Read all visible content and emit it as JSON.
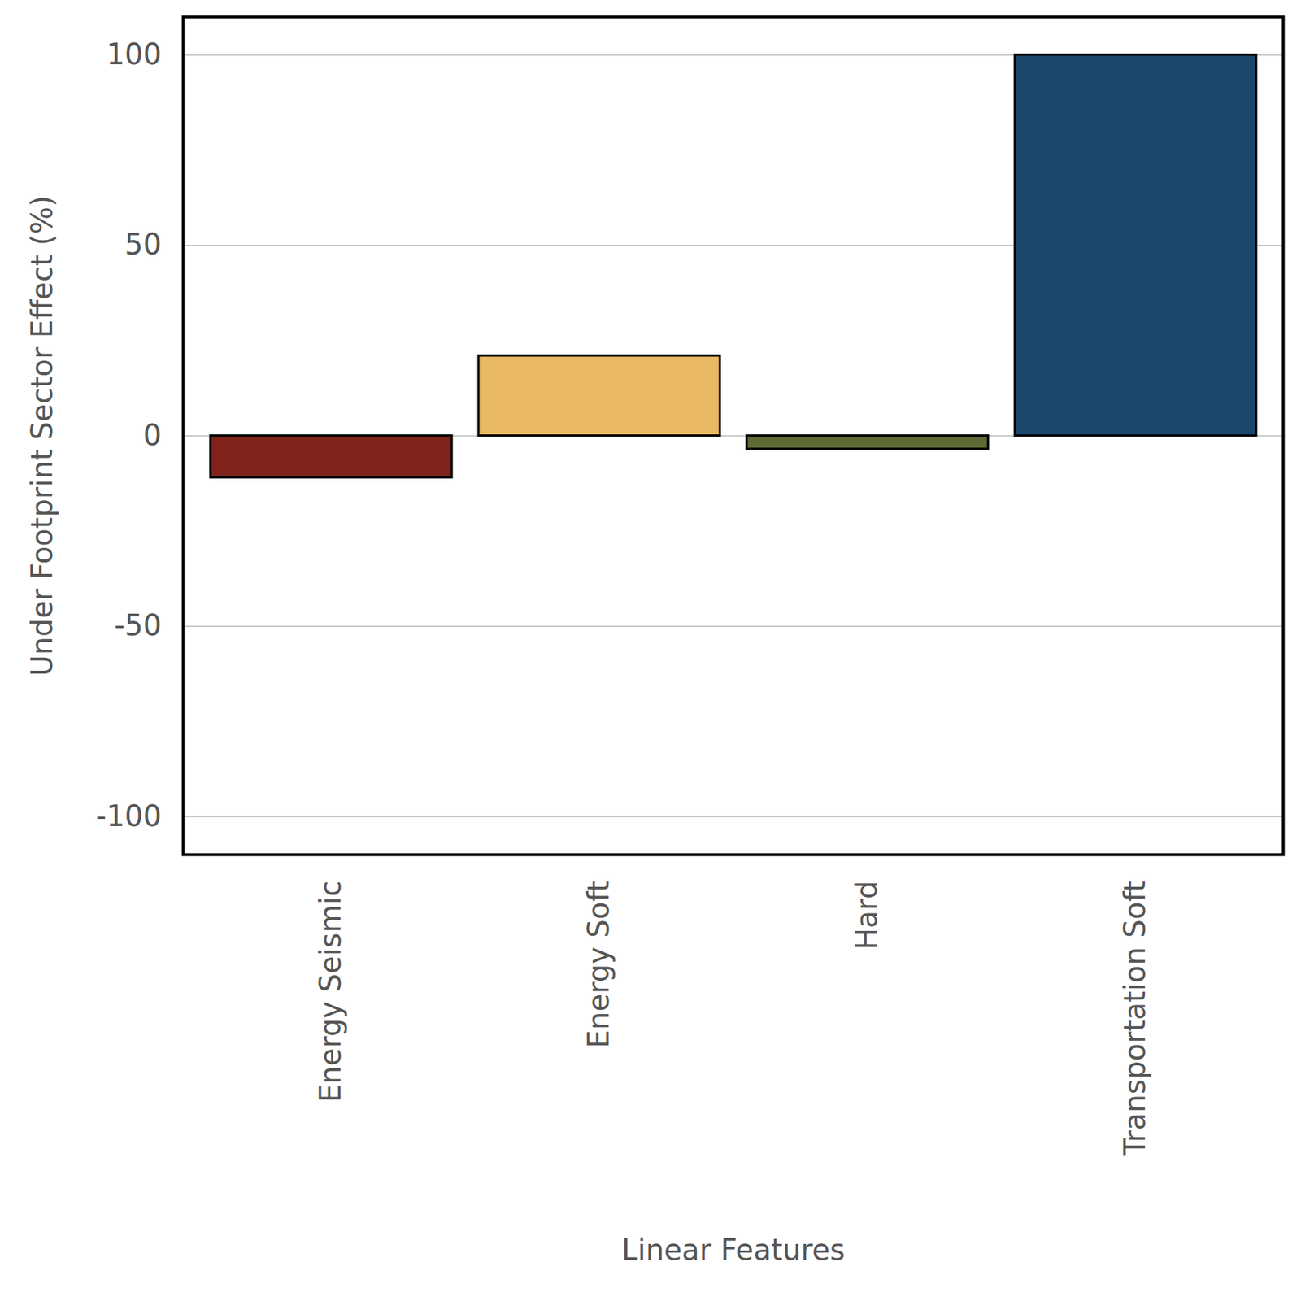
{
  "chart_data": {
    "type": "bar",
    "categories": [
      "Energy Seismic",
      "Energy Soft",
      "Hard",
      "Transportation Soft"
    ],
    "values": [
      -11,
      21,
      -3.5,
      100
    ],
    "colors": [
      "#7f231c",
      "#e8b862",
      "#5f6b34",
      "#1b476d"
    ],
    "xlabel": "Linear Features",
    "ylabel": "Under Footprint Sector Effect (%)",
    "ylim": [
      -110,
      110
    ],
    "yticks": [
      -100,
      -50,
      0,
      50,
      100
    ],
    "grid": true
  }
}
